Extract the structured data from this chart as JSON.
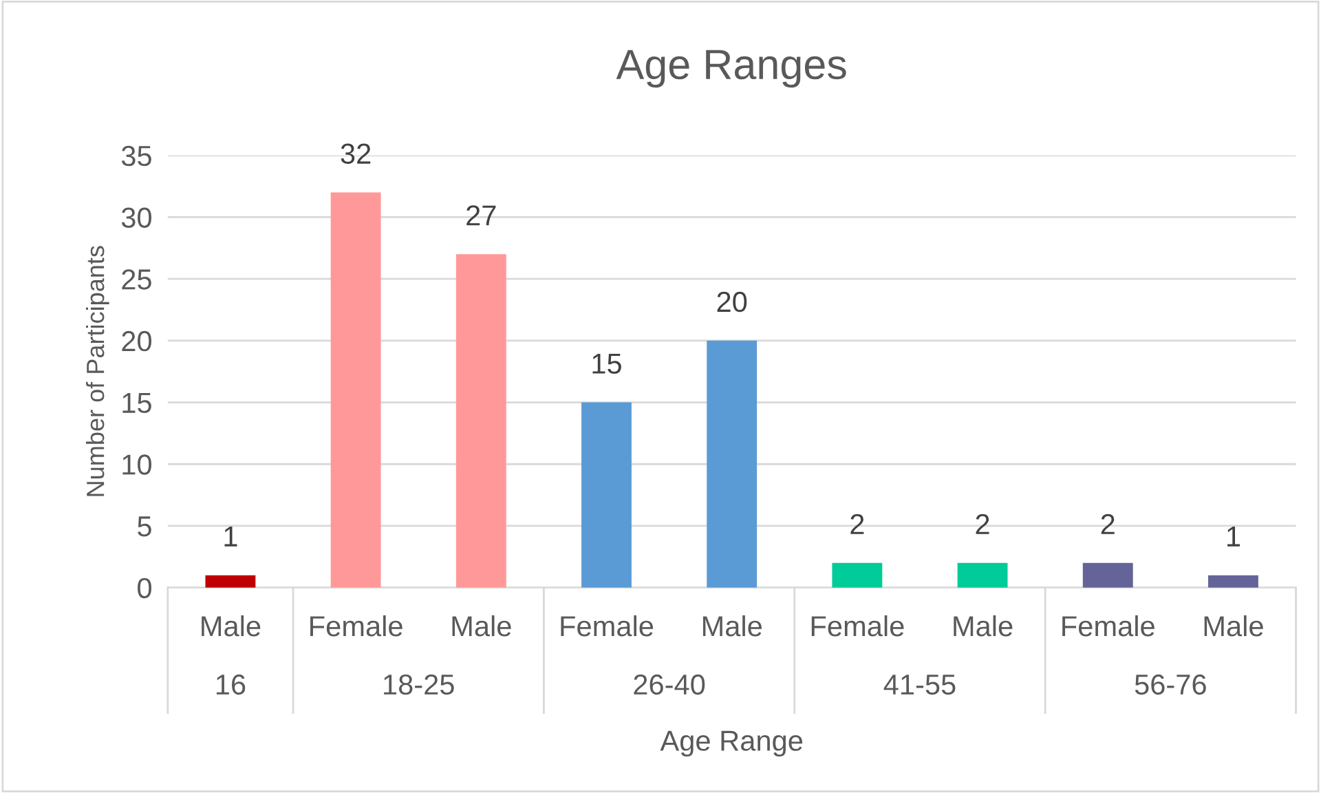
{
  "chart_data": {
    "type": "bar",
    "title": "Age Ranges",
    "xlabel": "Age Range",
    "ylabel": "Number of Participants",
    "categories": [
      "Male",
      "Female",
      "Male",
      "Female",
      "Male",
      "Female",
      "Male",
      "Female",
      "Male"
    ],
    "values": [
      1,
      32,
      27,
      15,
      20,
      2,
      2,
      2,
      1
    ],
    "colors": [
      "#c00000",
      "#ff9999",
      "#ff9999",
      "#5b9bd5",
      "#5b9bd5",
      "#00cc99",
      "#00cc99",
      "#646499",
      "#646499"
    ],
    "annotations": [
      "16",
      "18-25",
      "26-40",
      "41-55",
      "56-76"
    ],
    "ylim": [
      0,
      35
    ],
    "yticks": [
      0,
      5,
      10,
      15,
      20,
      25,
      30,
      35
    ],
    "grid": "y",
    "data_labels": true,
    "legend": false
  }
}
